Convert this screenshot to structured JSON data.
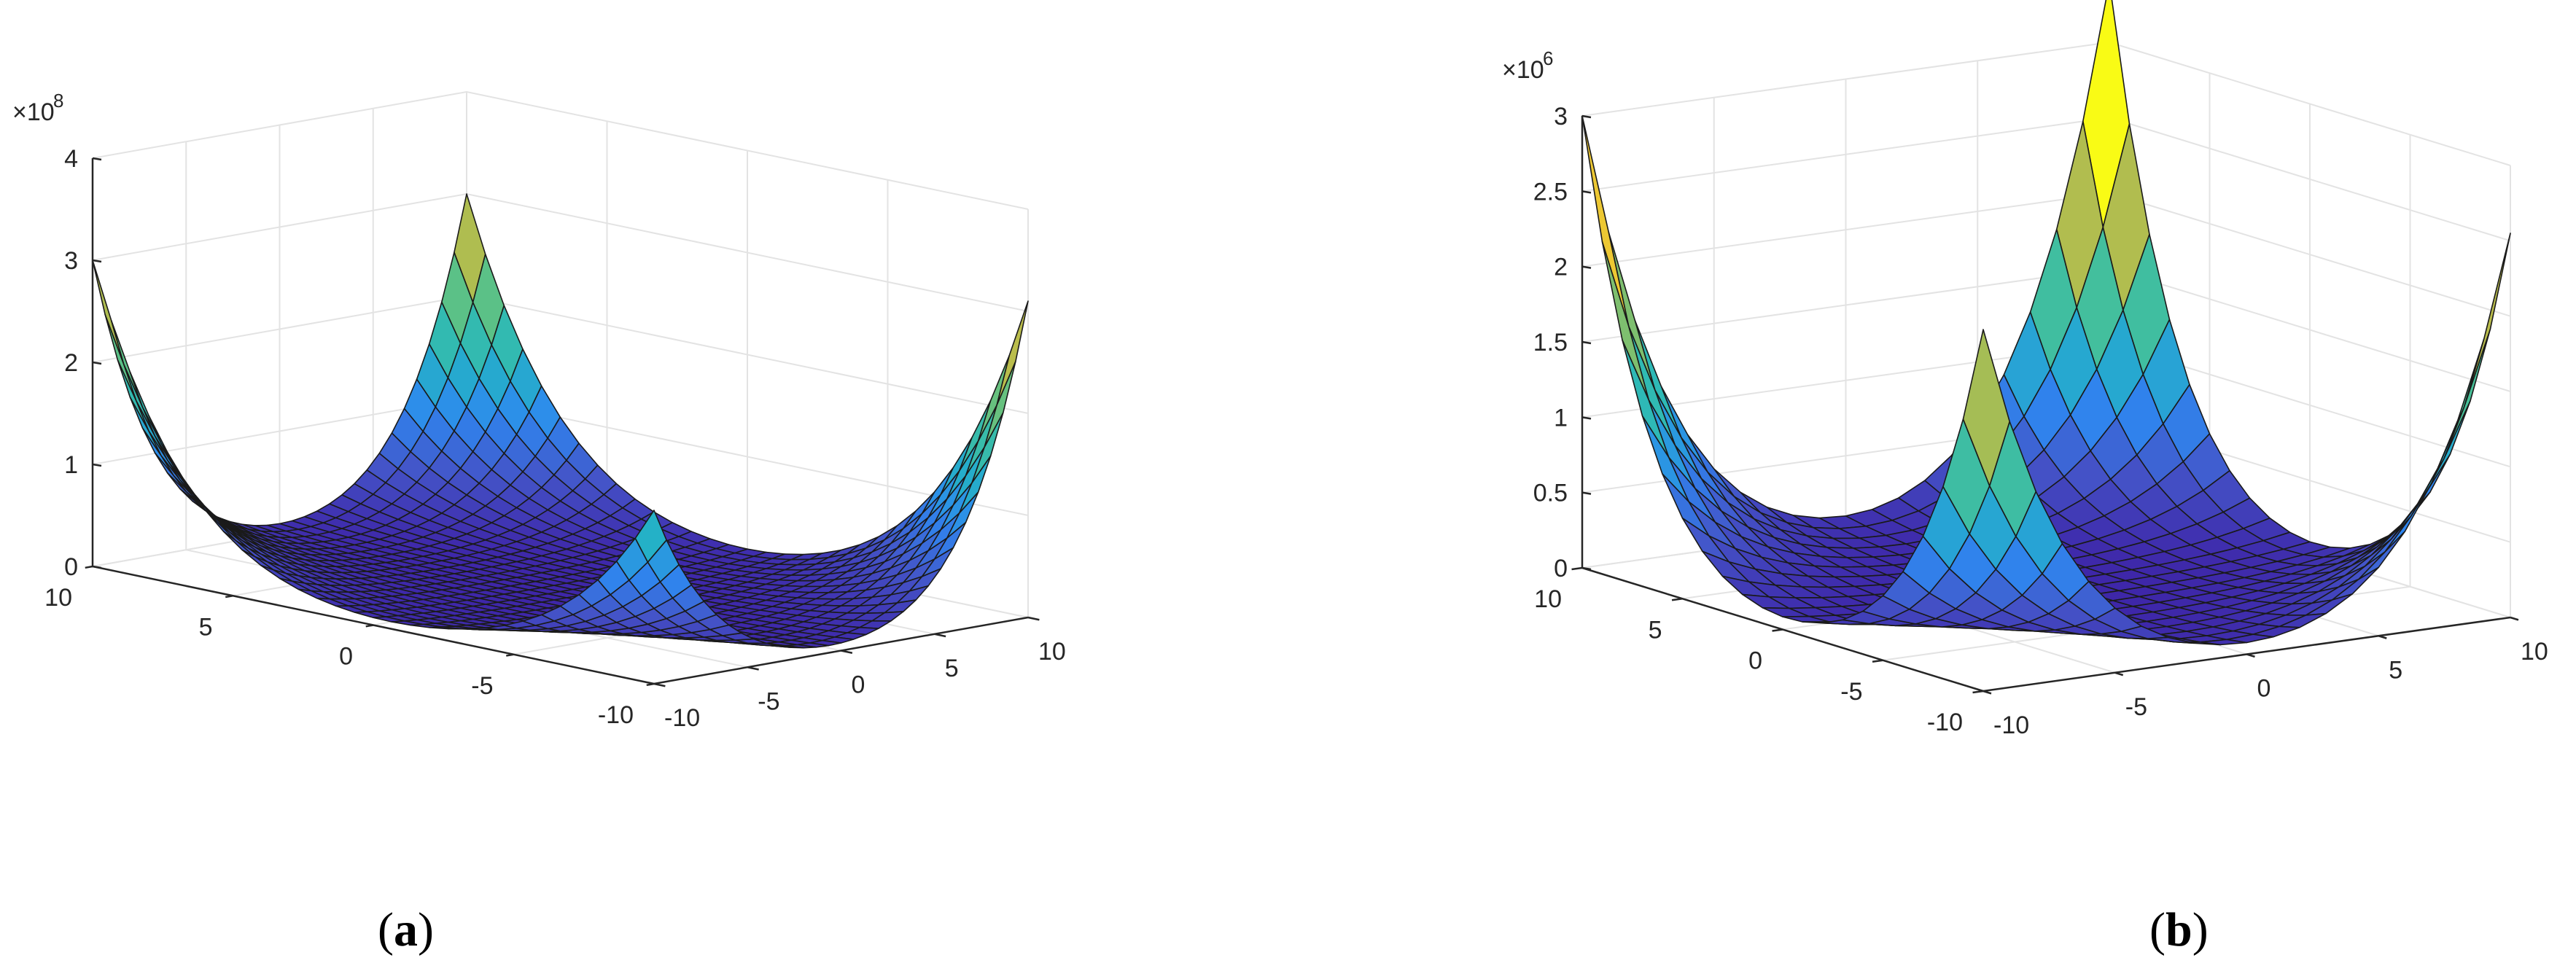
{
  "chart_data": [
    {
      "type": "surface",
      "panel_label": "a",
      "x_ticks": [
        "-10",
        "-5",
        "0",
        "5",
        "10"
      ],
      "y_ticks": [
        "-10",
        "-5",
        "0",
        "5",
        "10"
      ],
      "z_ticks": [
        "0",
        "1",
        "2",
        "3",
        "4"
      ],
      "z_exponent_label": "×10",
      "z_exponent": "8",
      "xlim": [
        -10,
        10
      ],
      "ylim": [
        -10,
        10
      ],
      "zlim": [
        0,
        400000000
      ],
      "grid": true,
      "mesh_resolution": 30,
      "corner_values": {
        "x-10_y-10": 170000000,
        "x10_y-10": 310000000,
        "x-10_y10": 300000000,
        "x10_y10": 300000000
      },
      "colormap": [
        "#3e26a8",
        "#4454c8",
        "#2e88f0",
        "#23b6c2",
        "#4ec290",
        "#a9bd52",
        "#eabc3a",
        "#f9fb15"
      ]
    },
    {
      "type": "surface",
      "panel_label": "b",
      "x_ticks": [
        "-10",
        "-5",
        "0",
        "5",
        "10"
      ],
      "y_ticks": [
        "-10",
        "-5",
        "0",
        "5",
        "10"
      ],
      "z_ticks": [
        "0",
        "0.5",
        "1",
        "1.5",
        "2",
        "2.5",
        "3"
      ],
      "z_exponent_label": "×10",
      "z_exponent": "6",
      "xlim": [
        -10,
        10
      ],
      "ylim": [
        -10,
        10
      ],
      "zlim": [
        0,
        3000000
      ],
      "grid": true,
      "mesh_resolution": 20,
      "corner_values": {
        "x-10_y-10": 2400000,
        "x10_y-10": 2550000,
        "x-10_y10": 3000000,
        "x10_y10": 3400000
      },
      "colormap": [
        "#3e26a8",
        "#4454c8",
        "#2e88f0",
        "#23b6c2",
        "#4ec290",
        "#a9bd52",
        "#eabc3a",
        "#f9fb15"
      ]
    }
  ],
  "captions": [
    "a",
    "b"
  ]
}
